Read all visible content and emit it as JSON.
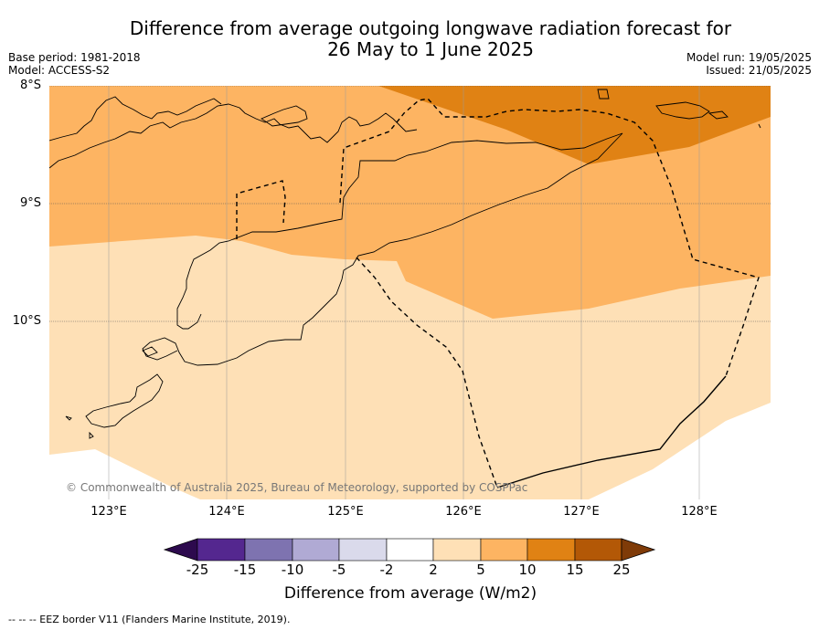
{
  "title_line1": "Difference from average outgoing longwave radiation forecast for",
  "title_line2": "26 May to 1 June 2025",
  "base_period": "Base period: 1981-2018",
  "model": "Model: ACCESS-S2",
  "model_run": "Model run: 19/05/2025",
  "issued": "Issued: 21/05/2025",
  "lat_labels": [
    "8°S",
    "9°S",
    "10°S"
  ],
  "lon_labels": [
    "123°E",
    "124°E",
    "125°E",
    "126°E",
    "127°E",
    "128°E"
  ],
  "copyright": "© Commonwealth of Australia 2025, Bureau of Meteorology, supported by COSPPac",
  "colorbar": {
    "ticks": [
      "-25",
      "-15",
      "-10",
      "-5",
      "-2",
      "2",
      "5",
      "10",
      "15",
      "25"
    ],
    "colors": [
      "#2d0a4e",
      "#54278f",
      "#7e73b0",
      "#b0aad4",
      "#dadaeb",
      "#ffffff",
      "#fee0b6",
      "#fdb462",
      "#e08214",
      "#b35806",
      "#7f3b08"
    ],
    "title": "Difference from average (W/m2)"
  },
  "eez_note": "--  --  -- EEZ border V11 (Flanders Marine Institute, 2019).",
  "map_colors": {
    "class_2_5": "#fee0b6",
    "class_5_10": "#fdb462",
    "class_10_15": "#e08214",
    "land_outline": "#000000",
    "eez": "#000000",
    "grid": "#555555"
  }
}
